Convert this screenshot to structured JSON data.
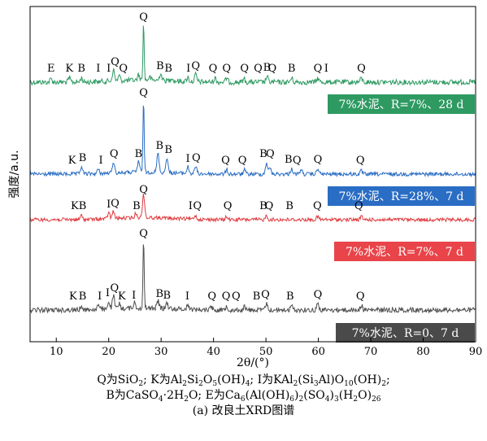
{
  "chart_data": {
    "type": "line",
    "xlabel": "2θ/(°)",
    "ylabel": "强度/a.u.",
    "xlim": [
      5,
      90
    ],
    "xticks": [
      "10",
      "20",
      "30",
      "40",
      "50",
      "60",
      "70",
      "80",
      "90"
    ],
    "grid": false,
    "series": [
      {
        "name": "7%水泥、R=7%、28 d",
        "color": "#2e9a62",
        "label_bg": "#2e9a62",
        "baseline": 101,
        "noise": 3.2,
        "peaks": [
          [
            9.0,
            4
          ],
          [
            12.5,
            5
          ],
          [
            14.8,
            5
          ],
          [
            20.9,
            14
          ],
          [
            22.0,
            6
          ],
          [
            25.7,
            7
          ],
          [
            26.65,
            72
          ],
          [
            27.8,
            4
          ],
          [
            29.9,
            9
          ],
          [
            32.0,
            4
          ],
          [
            35.1,
            5
          ],
          [
            36.6,
            9
          ],
          [
            40.3,
            5
          ],
          [
            42.5,
            5
          ],
          [
            45.8,
            4
          ],
          [
            50.2,
            7
          ],
          [
            54.9,
            5
          ],
          [
            59.9,
            5
          ],
          [
            68.2,
            5
          ]
        ],
        "annotations": [
          [
            9.0,
            "E"
          ],
          [
            12.5,
            "K"
          ],
          [
            14.8,
            "B"
          ],
          [
            18.0,
            "I"
          ],
          [
            20.0,
            "I"
          ],
          [
            21.2,
            "Q"
          ],
          [
            22.8,
            "Q"
          ],
          [
            26.65,
            "Q"
          ],
          [
            29.8,
            "B"
          ],
          [
            31.4,
            "B"
          ],
          [
            35.2,
            "I"
          ],
          [
            36.6,
            "Q"
          ],
          [
            39.9,
            "Q"
          ],
          [
            42.5,
            "Q"
          ],
          [
            45.9,
            "Q"
          ],
          [
            48.5,
            "Q"
          ],
          [
            50.2,
            "B"
          ],
          [
            51.2,
            "Q"
          ],
          [
            54.9,
            "B"
          ],
          [
            59.9,
            "Q"
          ],
          [
            61.5,
            "I"
          ],
          [
            68.2,
            "Q"
          ]
        ]
      },
      {
        "name": "7%水泥、R=28%、7 d",
        "color": "#2a6dc4",
        "label_bg": "#2a6dc4",
        "baseline": 214,
        "noise": 2.4,
        "peaks": [
          [
            14.8,
            9
          ],
          [
            18.0,
            5
          ],
          [
            20.9,
            14
          ],
          [
            25.7,
            14
          ],
          [
            26.65,
            92
          ],
          [
            29.4,
            24
          ],
          [
            31.1,
            19
          ],
          [
            35.1,
            8
          ],
          [
            36.6,
            9
          ],
          [
            42.5,
            5
          ],
          [
            45.9,
            5
          ],
          [
            50.1,
            14
          ],
          [
            50.8,
            8
          ],
          [
            54.9,
            7
          ],
          [
            56.7,
            6
          ],
          [
            59.9,
            7
          ],
          [
            68.2,
            4
          ]
        ],
        "annotations": [
          [
            13.0,
            "K"
          ],
          [
            15.0,
            "B"
          ],
          [
            18.5,
            "I"
          ],
          [
            21.0,
            "Q"
          ],
          [
            25.7,
            "B"
          ],
          [
            26.65,
            "Q"
          ],
          [
            29.7,
            "B"
          ],
          [
            31.4,
            "B"
          ],
          [
            35.1,
            "I"
          ],
          [
            36.7,
            "Q"
          ],
          [
            42.3,
            "Q"
          ],
          [
            45.5,
            "Q"
          ],
          [
            49.5,
            "B"
          ],
          [
            50.8,
            "Q"
          ],
          [
            54.3,
            "B"
          ],
          [
            55.9,
            "Q"
          ],
          [
            59.9,
            "Q"
          ],
          [
            68.0,
            "Q"
          ]
        ]
      },
      {
        "name": "7%水泥、R=7%、7 d",
        "color": "#e03b3f",
        "label_bg": "#e84449",
        "baseline": 270,
        "noise": 2.2,
        "peaks": [
          [
            14.8,
            5
          ],
          [
            20.0,
            8
          ],
          [
            20.9,
            9
          ],
          [
            25.2,
            6
          ],
          [
            26.65,
            29
          ],
          [
            36.5,
            5
          ],
          [
            42.5,
            4
          ],
          [
            50.1,
            5
          ],
          [
            59.9,
            4
          ],
          [
            68.2,
            4
          ]
        ],
        "annotations": [
          [
            13.5,
            "K"
          ],
          [
            15.0,
            "B"
          ],
          [
            20.0,
            "I"
          ],
          [
            21.2,
            "Q"
          ],
          [
            25.3,
            "B"
          ],
          [
            26.65,
            "Q"
          ],
          [
            35.6,
            "I"
          ],
          [
            36.9,
            "Q"
          ],
          [
            42.7,
            "Q"
          ],
          [
            49.5,
            "B"
          ],
          [
            50.6,
            "Q"
          ],
          [
            54.5,
            "B"
          ],
          [
            59.8,
            "Q"
          ],
          [
            67.7,
            "Q"
          ]
        ]
      },
      {
        "name": "7%水泥、R=0、7 d",
        "color": "#4f4f4f",
        "label_bg": "#4a4a4a",
        "baseline": 381,
        "noise": 3.0,
        "peaks": [
          [
            14.8,
            5
          ],
          [
            18.0,
            5
          ],
          [
            20.0,
            10
          ],
          [
            20.9,
            16
          ],
          [
            22.0,
            6
          ],
          [
            24.9,
            7
          ],
          [
            26.65,
            86
          ],
          [
            29.4,
            9
          ],
          [
            31.1,
            7
          ],
          [
            35.1,
            6
          ],
          [
            39.5,
            5
          ],
          [
            42.5,
            5
          ],
          [
            45.9,
            4
          ],
          [
            50.1,
            8
          ],
          [
            54.9,
            5
          ],
          [
            59.9,
            8
          ],
          [
            68.2,
            6
          ]
        ],
        "annotations": [
          [
            13.2,
            "K"
          ],
          [
            15.0,
            "B"
          ],
          [
            18.3,
            "I"
          ],
          [
            19.8,
            "I"
          ],
          [
            21.1,
            "Q"
          ],
          [
            22.5,
            "K"
          ],
          [
            24.8,
            "I"
          ],
          [
            26.65,
            "Q"
          ],
          [
            29.7,
            "B"
          ],
          [
            31.1,
            "B"
          ],
          [
            35.0,
            "I"
          ],
          [
            39.7,
            "Q"
          ],
          [
            42.4,
            "Q"
          ],
          [
            44.3,
            "Q"
          ],
          [
            48.2,
            "B"
          ],
          [
            49.9,
            "Q"
          ],
          [
            54.6,
            "B"
          ],
          [
            59.9,
            "Q"
          ],
          [
            68.0,
            "Q"
          ]
        ]
      }
    ]
  },
  "legend_text": {
    "line1": [
      "Q为SiO",
      "2",
      "; K为Al",
      "2",
      "Si",
      "2",
      "O",
      "5",
      "(OH)",
      "4",
      "; I为KAl",
      "2",
      "(Si",
      "3",
      "Al)O",
      "10",
      "(OH)",
      "2",
      ";"
    ],
    "line2": [
      "B为CaSO",
      "4",
      "·2H",
      "2",
      "O; E为Ca",
      "6",
      "(Al(OH)",
      "6",
      ")",
      "2",
      "(SO",
      "4",
      ")",
      "3",
      "(H",
      "2",
      "O)",
      "26"
    ]
  },
  "caption": "(a) 改良土XRD图谱"
}
